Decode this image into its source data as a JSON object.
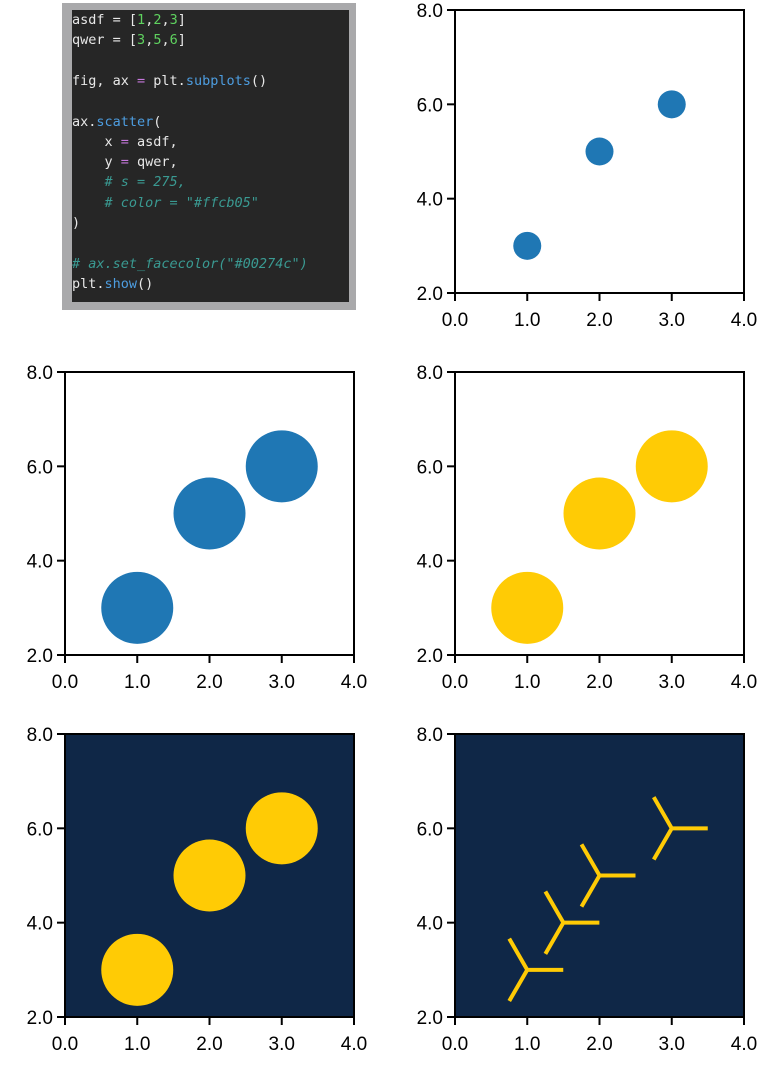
{
  "code_panel": {
    "lines": [
      [
        {
          "t": "asdf = ",
          "k": "plain"
        },
        {
          "t": "[",
          "k": "plain"
        },
        {
          "t": "1",
          "k": "num"
        },
        {
          "t": ",",
          "k": "plain"
        },
        {
          "t": "2",
          "k": "num"
        },
        {
          "t": ",",
          "k": "plain"
        },
        {
          "t": "3",
          "k": "num"
        },
        {
          "t": "]",
          "k": "plain"
        }
      ],
      [
        {
          "t": "qwer = ",
          "k": "plain"
        },
        {
          "t": "[",
          "k": "plain"
        },
        {
          "t": "3",
          "k": "num"
        },
        {
          "t": ",",
          "k": "plain"
        },
        {
          "t": "5",
          "k": "num"
        },
        {
          "t": ",",
          "k": "plain"
        },
        {
          "t": "6",
          "k": "num"
        },
        {
          "t": "]",
          "k": "plain"
        }
      ],
      [],
      [
        {
          "t": "fig, ax ",
          "k": "plain"
        },
        {
          "t": "=",
          "k": "op"
        },
        {
          "t": " plt.",
          "k": "plain"
        },
        {
          "t": "subplots",
          "k": "fn"
        },
        {
          "t": "()",
          "k": "plain"
        }
      ],
      [],
      [
        {
          "t": "ax.",
          "k": "plain"
        },
        {
          "t": "scatter",
          "k": "fn"
        },
        {
          "t": "(",
          "k": "plain"
        }
      ],
      [
        {
          "t": "    x ",
          "k": "plain"
        },
        {
          "t": "=",
          "k": "op"
        },
        {
          "t": " asdf,",
          "k": "plain"
        }
      ],
      [
        {
          "t": "    y ",
          "k": "plain"
        },
        {
          "t": "=",
          "k": "op"
        },
        {
          "t": " qwer,",
          "k": "plain"
        }
      ],
      [
        {
          "t": "    # s = 275,",
          "k": "com"
        }
      ],
      [
        {
          "t": "    # color = \"#ffcb05\"",
          "k": "com"
        }
      ],
      [
        {
          "t": ")",
          "k": "plain"
        }
      ],
      [],
      [
        {
          "t": "# ax.set_facecolor(\"#00274c\")",
          "k": "com"
        }
      ],
      [
        {
          "t": "plt.",
          "k": "plain"
        },
        {
          "t": "show",
          "k": "fn"
        },
        {
          "t": "()",
          "k": "plain"
        }
      ]
    ]
  },
  "chart_data": [
    {
      "type": "scatter",
      "x": [
        1,
        2,
        3
      ],
      "y": [
        3,
        5,
        6
      ],
      "xlim": [
        0,
        4
      ],
      "ylim": [
        2,
        8
      ],
      "marker": "circle",
      "marker_size": "small",
      "color": "#1f77b4",
      "background": "#ffffff",
      "x_ticks": [
        "0.0",
        "1.0",
        "2.0",
        "3.0",
        "4.0"
      ],
      "y_ticks": [
        "2.0",
        "4.0",
        "6.0",
        "8.0"
      ],
      "grid": false
    },
    {
      "type": "scatter",
      "x": [
        1,
        2,
        3
      ],
      "y": [
        3,
        5,
        6
      ],
      "xlim": [
        0,
        4
      ],
      "ylim": [
        2,
        8
      ],
      "marker": "circle",
      "marker_size": "large",
      "color": "#1f77b4",
      "background": "#ffffff",
      "x_ticks": [
        "0.0",
        "1.0",
        "2.0",
        "3.0",
        "4.0"
      ],
      "y_ticks": [
        "2.0",
        "4.0",
        "6.0",
        "8.0"
      ],
      "grid": false
    },
    {
      "type": "scatter",
      "x": [
        1,
        2,
        3
      ],
      "y": [
        3,
        5,
        6
      ],
      "xlim": [
        0,
        4
      ],
      "ylim": [
        2,
        8
      ],
      "marker": "circle",
      "marker_size": "large",
      "color": "#ffcb05",
      "background": "#ffffff",
      "x_ticks": [
        "0.0",
        "1.0",
        "2.0",
        "3.0",
        "4.0"
      ],
      "y_ticks": [
        "2.0",
        "4.0",
        "6.0",
        "8.0"
      ],
      "grid": false
    },
    {
      "type": "scatter",
      "x": [
        1,
        2,
        3
      ],
      "y": [
        3,
        5,
        6
      ],
      "xlim": [
        0,
        4
      ],
      "ylim": [
        2,
        8
      ],
      "marker": "circle",
      "marker_size": "large",
      "color": "#ffcb05",
      "background": "#0f2747",
      "x_ticks": [
        "0.0",
        "1.0",
        "2.0",
        "3.0",
        "4.0"
      ],
      "y_ticks": [
        "2.0",
        "4.0",
        "6.0",
        "8.0"
      ],
      "grid": false
    },
    {
      "type": "scatter",
      "x": [
        1,
        1.5,
        2,
        3
      ],
      "y": [
        3,
        4,
        5,
        6
      ],
      "xlim": [
        0,
        4
      ],
      "ylim": [
        2,
        8
      ],
      "marker": "tri_left",
      "marker_size": "large",
      "color": "#ffcb05",
      "background": "#0f2747",
      "x_ticks": [
        "0.0",
        "1.0",
        "2.0",
        "3.0",
        "4.0"
      ],
      "y_ticks": [
        "2.0",
        "4.0",
        "6.0",
        "8.0"
      ],
      "grid": false
    }
  ]
}
